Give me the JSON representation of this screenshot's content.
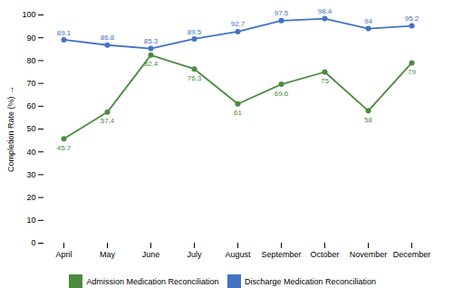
{
  "chart_data": {
    "type": "line",
    "categories": [
      "April",
      "May",
      "June",
      "July",
      "August",
      "September",
      "October",
      "November",
      "December"
    ],
    "series": [
      {
        "name": "Admission Medication Reconciliation",
        "color": "#4a8c3f",
        "values": [
          45.7,
          57.4,
          82.4,
          76.3,
          61,
          69.6,
          75,
          58,
          79
        ]
      },
      {
        "name": "Discharge Medication Reconciliation",
        "color": "#4472c4",
        "values": [
          89.1,
          86.8,
          85.3,
          89.5,
          92.7,
          97.5,
          98.4,
          94,
          95.2
        ]
      }
    ],
    "ylabel": "Completion Rate (%)",
    "ylim": [
      0,
      100
    ],
    "yticks": [
      0,
      10,
      20,
      30,
      40,
      50,
      60,
      70,
      80,
      90,
      100
    ],
    "marker": "circle",
    "data_labels": true,
    "grid": false,
    "legend": "bottom"
  }
}
